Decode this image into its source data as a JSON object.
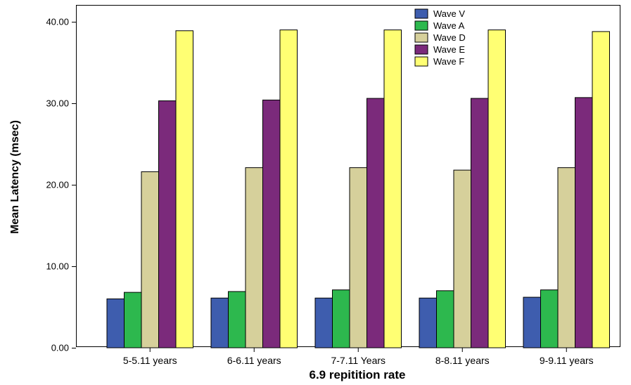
{
  "chart_data": {
    "type": "bar",
    "title": "",
    "xlabel": "6.9 repitition rate",
    "ylabel": "Mean Latency (msec)",
    "ylim": [
      0,
      42
    ],
    "yticks": [
      "0.00",
      "10.00",
      "20.00",
      "30.00",
      "40.00"
    ],
    "ytick_values": [
      0,
      10,
      20,
      30,
      40
    ],
    "categories": [
      "5-5.11 years",
      "6-6.11 years",
      "7-7.11 Years",
      "8-8.11 years",
      "9-9.11 years"
    ],
    "series": [
      {
        "name": "Wave V",
        "color": "#3e5dae",
        "values": [
          6.0,
          6.1,
          6.1,
          6.1,
          6.2
        ]
      },
      {
        "name": "Wave A",
        "color": "#2db84e",
        "values": [
          6.8,
          6.9,
          7.1,
          7.0,
          7.1
        ]
      },
      {
        "name": "Wave D",
        "color": "#d6d09b",
        "values": [
          21.6,
          22.1,
          22.1,
          21.8,
          22.1
        ]
      },
      {
        "name": "Wave E",
        "color": "#7b2a7b",
        "values": [
          30.3,
          30.4,
          30.6,
          30.6,
          30.7
        ]
      },
      {
        "name": "Wave F",
        "color": "#ffff73",
        "values": [
          38.9,
          39.0,
          39.0,
          39.0,
          38.8
        ]
      }
    ],
    "legend_position": "top-right",
    "grid": false
  }
}
